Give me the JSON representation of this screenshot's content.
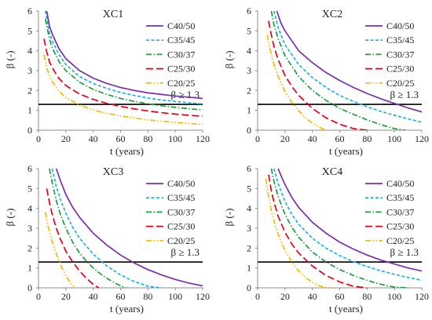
{
  "chart_data": [
    {
      "type": "line",
      "title": "XC1",
      "xlabel": "t (years)",
      "ylabel": "β (-)",
      "xlim": [
        0,
        120
      ],
      "ylim": [
        0,
        6
      ],
      "xticks": [
        0,
        20,
        40,
        60,
        80,
        100,
        120
      ],
      "yticks": [
        0,
        1,
        2,
        3,
        4,
        5,
        6
      ],
      "grid": false,
      "legend_position": "top-right",
      "threshold": {
        "value": 1.3,
        "label": "β ≥ 1.3"
      },
      "series": [
        {
          "name": "C40/50",
          "color": "#7b2ea8",
          "dash": "solid",
          "x": [
            6,
            8,
            10,
            15,
            20,
            30,
            40,
            50,
            60,
            70,
            80,
            90,
            100,
            110,
            120
          ],
          "y": [
            6.0,
            5.25,
            4.85,
            4.1,
            3.6,
            3.0,
            2.62,
            2.35,
            2.15,
            2.0,
            1.88,
            1.8,
            1.72,
            1.66,
            1.6
          ]
        },
        {
          "name": "C35/45",
          "color": "#1ab0e6",
          "dash": "dashed",
          "x": [
            5,
            8,
            10,
            15,
            20,
            30,
            40,
            50,
            60,
            70,
            80,
            90,
            100,
            110,
            120
          ],
          "y": [
            6.0,
            4.9,
            4.5,
            3.8,
            3.3,
            2.7,
            2.35,
            2.1,
            1.9,
            1.75,
            1.62,
            1.52,
            1.45,
            1.38,
            1.32
          ]
        },
        {
          "name": "C30/37",
          "color": "#1f9e3c",
          "dash": "dashdot",
          "x": [
            5,
            8,
            10,
            15,
            20,
            30,
            40,
            50,
            60,
            70,
            80,
            90,
            100,
            110,
            120
          ],
          "y": [
            5.6,
            4.6,
            4.15,
            3.45,
            3.0,
            2.42,
            2.05,
            1.8,
            1.6,
            1.45,
            1.33,
            1.23,
            1.15,
            1.08,
            1.02
          ]
        },
        {
          "name": "C25/30",
          "color": "#e3001b",
          "dash": "longdash",
          "x": [
            4,
            6,
            8,
            10,
            15,
            20,
            30,
            40,
            50,
            60,
            70,
            80,
            90,
            100,
            110,
            120
          ],
          "y": [
            4.6,
            3.95,
            3.45,
            3.15,
            2.6,
            2.25,
            1.82,
            1.55,
            1.35,
            1.2,
            1.07,
            0.97,
            0.88,
            0.81,
            0.75,
            0.7
          ]
        },
        {
          "name": "C20/25",
          "color": "#f5b800",
          "dash": "dashdotdot",
          "x": [
            4,
            6,
            8,
            10,
            15,
            20,
            30,
            40,
            50,
            60,
            70,
            80,
            90,
            100,
            110,
            120
          ],
          "y": [
            3.8,
            3.15,
            2.75,
            2.45,
            1.95,
            1.65,
            1.27,
            1.02,
            0.85,
            0.72,
            0.61,
            0.52,
            0.45,
            0.39,
            0.34,
            0.3
          ]
        }
      ]
    },
    {
      "type": "line",
      "title": "XC2",
      "xlabel": "t (years)",
      "ylabel": "β (-)",
      "xlim": [
        0,
        120
      ],
      "ylim": [
        0,
        6
      ],
      "xticks": [
        0,
        20,
        40,
        60,
        80,
        100,
        120
      ],
      "yticks": [
        0,
        1,
        2,
        3,
        4,
        5,
        6
      ],
      "grid": false,
      "legend_position": "top-right",
      "threshold": {
        "value": 1.3,
        "label": "β ≥ 1.3"
      },
      "series": [
        {
          "name": "C40/50",
          "color": "#7b2ea8",
          "dash": "solid",
          "x": [
            14,
            17,
            20,
            30,
            40,
            50,
            60,
            70,
            80,
            90,
            100,
            110,
            120
          ],
          "y": [
            6.0,
            5.4,
            5.0,
            4.0,
            3.4,
            2.9,
            2.5,
            2.15,
            1.85,
            1.58,
            1.35,
            1.12,
            0.92
          ]
        },
        {
          "name": "C35/45",
          "color": "#1ab0e6",
          "dash": "dashed",
          "x": [
            12,
            15,
            20,
            30,
            40,
            50,
            60,
            70,
            80,
            90,
            100,
            110,
            120
          ],
          "y": [
            6.0,
            5.15,
            4.3,
            3.3,
            2.65,
            2.15,
            1.75,
            1.45,
            1.18,
            0.95,
            0.75,
            0.57,
            0.4
          ]
        },
        {
          "name": "C30/37",
          "color": "#1f9e3c",
          "dash": "dashdot",
          "x": [
            10,
            12,
            15,
            20,
            30,
            40,
            50,
            60,
            70,
            80,
            90,
            100,
            108
          ],
          "y": [
            6.0,
            5.3,
            4.6,
            3.75,
            2.7,
            2.0,
            1.5,
            1.1,
            0.8,
            0.52,
            0.28,
            0.08,
            0.0
          ]
        },
        {
          "name": "C25/30",
          "color": "#e3001b",
          "dash": "longdash",
          "x": [
            8,
            10,
            12,
            15,
            20,
            25,
            30,
            40,
            50,
            60,
            70,
            80
          ],
          "y": [
            5.5,
            4.8,
            4.2,
            3.55,
            2.75,
            2.2,
            1.75,
            1.1,
            0.62,
            0.3,
            0.08,
            0.0
          ]
        },
        {
          "name": "C20/25",
          "color": "#f5b800",
          "dash": "dashdotdot",
          "x": [
            7,
            9,
            12,
            15,
            20,
            25,
            30,
            35,
            40,
            45,
            50
          ],
          "y": [
            4.8,
            4.1,
            3.3,
            2.7,
            1.95,
            1.4,
            0.98,
            0.62,
            0.35,
            0.15,
            0.0
          ]
        }
      ]
    },
    {
      "type": "line",
      "title": "XC3",
      "xlabel": "t (years)",
      "ylabel": "β (-)",
      "xlim": [
        0,
        120
      ],
      "ylim": [
        0,
        6
      ],
      "xticks": [
        0,
        20,
        40,
        60,
        80,
        100,
        120
      ],
      "yticks": [
        0,
        1,
        2,
        3,
        4,
        5,
        6
      ],
      "grid": false,
      "legend_position": "top-right",
      "threshold": {
        "value": 1.3,
        "label": "β ≥ 1.3"
      },
      "series": [
        {
          "name": "C40/50",
          "color": "#7b2ea8",
          "dash": "solid",
          "x": [
            13,
            16,
            20,
            25,
            30,
            40,
            50,
            60,
            70,
            80,
            90,
            100,
            110,
            120
          ],
          "y": [
            6.0,
            5.4,
            4.7,
            4.05,
            3.55,
            2.75,
            2.15,
            1.65,
            1.25,
            0.92,
            0.65,
            0.42,
            0.24,
            0.1
          ]
        },
        {
          "name": "C35/45",
          "color": "#1ab0e6",
          "dash": "dashed",
          "x": [
            10,
            13,
            16,
            20,
            25,
            30,
            40,
            50,
            60,
            70,
            80,
            90
          ],
          "y": [
            6.0,
            5.1,
            4.45,
            3.75,
            3.05,
            2.5,
            1.7,
            1.1,
            0.65,
            0.32,
            0.08,
            0.0
          ]
        },
        {
          "name": "C30/37",
          "color": "#1f9e3c",
          "dash": "dashdot",
          "x": [
            8,
            10,
            13,
            16,
            20,
            25,
            30,
            35,
            40,
            45,
            50,
            55,
            60,
            64
          ],
          "y": [
            6.0,
            5.3,
            4.4,
            3.7,
            3.0,
            2.3,
            1.75,
            1.35,
            1.0,
            0.72,
            0.48,
            0.28,
            0.1,
            0.0
          ]
        },
        {
          "name": "C25/30",
          "color": "#e3001b",
          "dash": "longdash",
          "x": [
            6,
            8,
            10,
            13,
            16,
            20,
            25,
            30,
            35,
            40,
            44
          ],
          "y": [
            5.0,
            4.3,
            3.7,
            3.0,
            2.45,
            1.85,
            1.3,
            0.85,
            0.48,
            0.18,
            0.0
          ]
        },
        {
          "name": "C20/25",
          "color": "#f5b800",
          "dash": "dashdotdot",
          "x": [
            5,
            7,
            9,
            12,
            15,
            18,
            21,
            24,
            27
          ],
          "y": [
            3.8,
            3.1,
            2.55,
            1.9,
            1.35,
            0.88,
            0.5,
            0.2,
            0.0
          ]
        }
      ]
    },
    {
      "type": "line",
      "title": "XC4",
      "xlabel": "t (years)",
      "ylabel": "β (-)",
      "xlim": [
        0,
        120
      ],
      "ylim": [
        0,
        6
      ],
      "xticks": [
        0,
        20,
        40,
        60,
        80,
        100,
        120
      ],
      "yticks": [
        0,
        1,
        2,
        3,
        4,
        5,
        6
      ],
      "grid": false,
      "legend_position": "top-right",
      "threshold": {
        "value": 1.3,
        "label": "β ≥ 1.3"
      },
      "series": [
        {
          "name": "C40/50",
          "color": "#7b2ea8",
          "dash": "solid",
          "x": [
            15,
            18,
            20,
            25,
            30,
            40,
            50,
            60,
            70,
            80,
            90,
            100,
            110,
            120
          ],
          "y": [
            6.0,
            5.5,
            5.2,
            4.55,
            4.05,
            3.3,
            2.75,
            2.3,
            1.95,
            1.65,
            1.4,
            1.2,
            1.0,
            0.85
          ]
        },
        {
          "name": "C35/45",
          "color": "#1ab0e6",
          "dash": "dashed",
          "x": [
            12,
            15,
            20,
            25,
            30,
            40,
            50,
            60,
            70,
            80,
            90,
            100,
            110,
            120
          ],
          "y": [
            6.0,
            5.25,
            4.35,
            3.7,
            3.2,
            2.5,
            2.0,
            1.62,
            1.32,
            1.07,
            0.86,
            0.68,
            0.52,
            0.38
          ]
        },
        {
          "name": "C30/37",
          "color": "#1f9e3c",
          "dash": "dashdot",
          "x": [
            10,
            12,
            15,
            20,
            25,
            30,
            40,
            50,
            60,
            70,
            80,
            90,
            100,
            110
          ],
          "y": [
            6.0,
            5.35,
            4.6,
            3.7,
            3.05,
            2.55,
            1.8,
            1.3,
            0.92,
            0.62,
            0.38,
            0.18,
            0.04,
            0.0
          ]
        },
        {
          "name": "C25/30",
          "color": "#e3001b",
          "dash": "longdash",
          "x": [
            8,
            10,
            12,
            15,
            20,
            25,
            30,
            40,
            50,
            60,
            70,
            80
          ],
          "y": [
            5.7,
            4.9,
            4.3,
            3.6,
            2.8,
            2.2,
            1.75,
            1.1,
            0.62,
            0.3,
            0.08,
            0.0
          ]
        },
        {
          "name": "C20/25",
          "color": "#f5b800",
          "dash": "dashdotdot",
          "x": [
            6,
            8,
            10,
            13,
            16,
            20,
            25,
            30,
            35,
            40,
            45,
            50,
            53
          ],
          "y": [
            5.5,
            4.6,
            3.9,
            3.1,
            2.5,
            1.9,
            1.3,
            0.85,
            0.52,
            0.28,
            0.1,
            0.02,
            0.0
          ]
        }
      ]
    }
  ]
}
